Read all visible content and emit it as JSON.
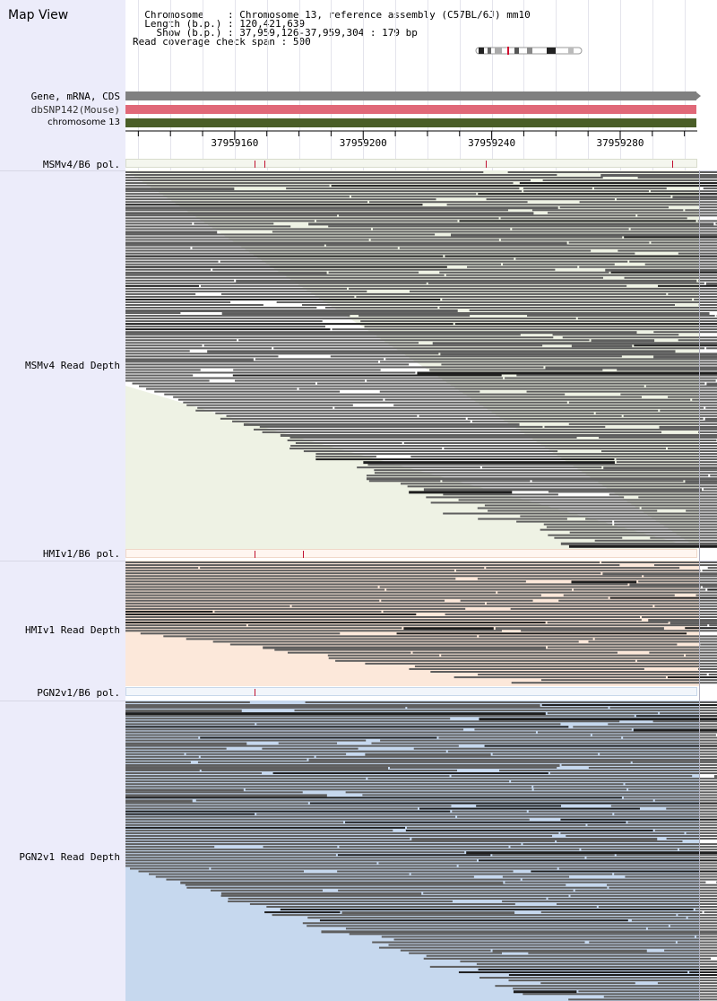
{
  "title": "Map View",
  "info": {
    "chromosome_label": "Chromosome",
    "chromosome_value": "Chromosome 13, reference assembly (C57BL/6J) mm10",
    "length_label": "Length (b.p.)",
    "length_value": "120,421,639",
    "show_label": "Show (b.p.)",
    "show_value": "37,959,126-37,959,304 : 179 bp",
    "coverage_label": "Read coverage check span",
    "coverage_value": "500"
  },
  "tracks": {
    "gene": "Gene, mRNA, CDS",
    "dbsnp": "dbSNP142(Mouse)",
    "chromosome": "chromosome 13"
  },
  "ruler": {
    "start": 37959126,
    "end": 37959304,
    "labels": [
      "37959160",
      "37959200",
      "37959240",
      "37959280"
    ]
  },
  "panels": [
    {
      "pol_label": "MSMv4/B6 pol.",
      "depth_label": "MSMv4 Read Depth",
      "snps": [
        37959166,
        37959169,
        37959238,
        37959296
      ]
    },
    {
      "pol_label": "HMIv1/B6 pol.",
      "depth_label": "HMIv1 Read Depth",
      "snps": [
        37959166,
        37959181
      ]
    },
    {
      "pol_label": "PGN2v1/B6 pol.",
      "depth_label": "PGN2v1 Read Depth",
      "snps": [
        37959166
      ]
    }
  ],
  "colors": {
    "gene": "#808080",
    "dbsnp": "#e06878",
    "chromosome": "#4a5e28",
    "msm_bg": "#eef2e4",
    "hmi_bg": "#fce8da",
    "pgn_bg": "#c6d8ee",
    "read": "#606060",
    "snp": "#c01030"
  }
}
